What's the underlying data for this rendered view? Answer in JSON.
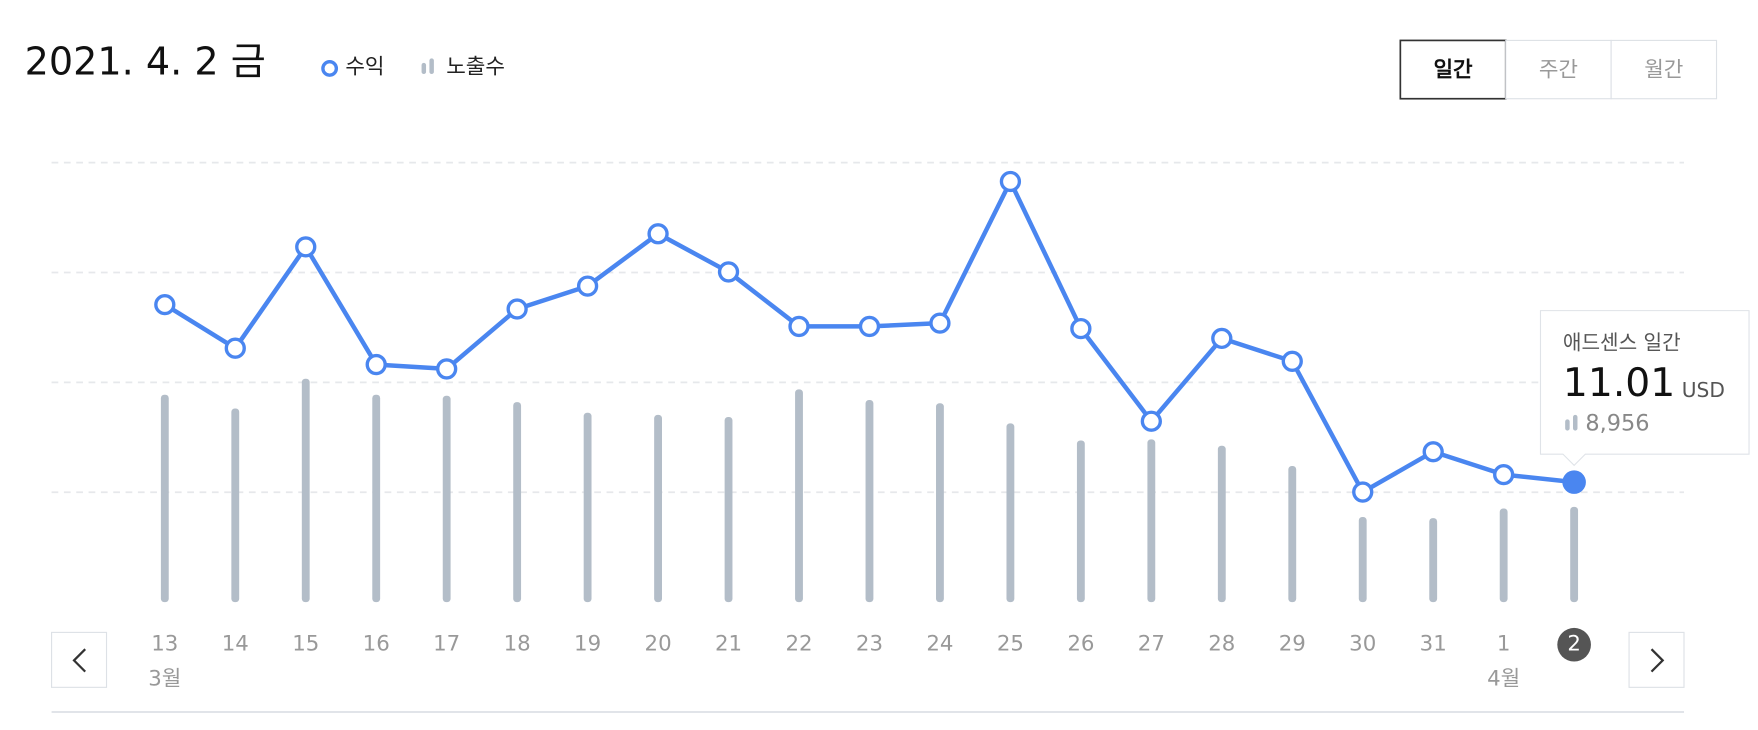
{
  "header": {
    "title": "2021. 4. 2 금",
    "tabs": [
      "일간",
      "주간",
      "월간"
    ],
    "selected_tab": 0
  },
  "chart_data": {
    "type": "line",
    "categories": [
      "13",
      "14",
      "15",
      "16",
      "17",
      "18",
      "19",
      "20",
      "21",
      "22",
      "23",
      "24",
      "25",
      "26",
      "27",
      "28",
      "29",
      "30",
      "31",
      "1",
      "2"
    ],
    "month_labels": [
      "3월",
      null,
      null,
      null,
      null,
      null,
      null,
      null,
      null,
      null,
      null,
      null,
      null,
      null,
      null,
      null,
      null,
      null,
      null,
      "4월",
      null
    ],
    "selected_index": 20,
    "series": [
      {
        "name": "수익",
        "type": "line",
        "color": "#4a86f0",
        "unit": "USD",
        "values": [
          27.3,
          23.3,
          32.6,
          21.8,
          21.4,
          26.9,
          29.0,
          33.8,
          30.3,
          25.3,
          25.3,
          25.6,
          38.6,
          25.1,
          16.6,
          24.2,
          22.1,
          10.1,
          13.8,
          11.7,
          11.01
        ]
      },
      {
        "name": "노출수",
        "type": "bar",
        "color": "#b3bdc8",
        "values": [
          19500,
          18200,
          21000,
          19500,
          19400,
          18800,
          17800,
          17600,
          17400,
          20000,
          19000,
          18700,
          16800,
          15200,
          15300,
          14700,
          12800,
          8000,
          7900,
          8800,
          8956
        ],
        "value_labels": [
          null,
          null,
          null,
          null,
          null,
          null,
          null,
          null,
          null,
          null,
          null,
          null,
          null,
          null,
          null,
          null,
          null,
          null,
          null,
          null,
          "8,956"
        ]
      }
    ],
    "tooltip_title": "애드센스 일간"
  }
}
